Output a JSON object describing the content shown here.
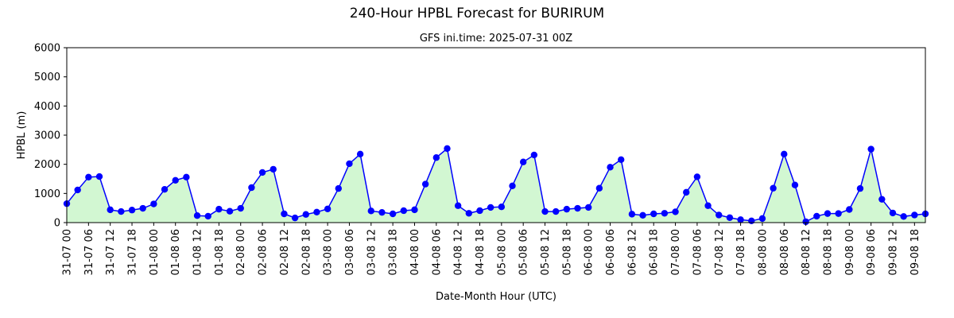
{
  "chart_data": {
    "type": "line",
    "title": "240-Hour HPBL Forecast for BURIRUM",
    "subtitle": "GFS ini.time: 2025-07-31 00Z",
    "xlabel": "Date-Month Hour (UTC)",
    "ylabel": "HPBL (m)",
    "ylim": [
      0,
      6000
    ],
    "yticks": [
      0,
      1000,
      2000,
      3000,
      4000,
      5000,
      6000
    ],
    "grid": false,
    "fill_under_line": true,
    "line_color": "#0000ff",
    "marker_color": "#0000ff",
    "fill_color": "#d2f7d2",
    "x_step_hours": 3,
    "x_tick_labels": [
      "31-07 00",
      "31-07 06",
      "31-07 12",
      "31-07 18",
      "01-08 00",
      "01-08 06",
      "01-08 12",
      "01-08 18",
      "02-08 00",
      "02-08 06",
      "02-08 12",
      "02-08 18",
      "03-08 00",
      "03-08 06",
      "03-08 12",
      "03-08 18",
      "04-08 00",
      "04-08 06",
      "04-08 12",
      "04-08 18",
      "05-08 00",
      "05-08 06",
      "05-08 12",
      "05-08 18",
      "06-08 00",
      "06-08 06",
      "06-08 12",
      "06-08 18",
      "07-08 00",
      "07-08 06",
      "07-08 12",
      "07-08 18",
      "08-08 00",
      "08-08 06",
      "08-08 12",
      "08-08 18",
      "09-08 00",
      "09-08 06",
      "09-08 12",
      "09-08 18"
    ],
    "series": [
      {
        "values": [
          650,
          1120,
          1560,
          1580,
          440,
          380,
          430,
          490,
          640,
          1140,
          1450,
          1560,
          240,
          220,
          460,
          390,
          490,
          1200,
          1720,
          1830,
          300,
          160,
          280,
          360,
          470,
          1170,
          2020,
          2350,
          400,
          350,
          300,
          410,
          440,
          1320,
          2230,
          2540,
          580,
          320,
          410,
          520,
          540,
          1260,
          2080,
          2320,
          380,
          380,
          460,
          490,
          520,
          1180,
          1900,
          2160,
          290,
          250,
          300,
          320,
          370,
          1040,
          1570,
          580,
          260,
          170,
          100,
          60,
          140,
          1180,
          2350,
          1290,
          30,
          220,
          310,
          310,
          450,
          1170,
          2520,
          800,
          330,
          210,
          260,
          300
        ]
      }
    ]
  }
}
